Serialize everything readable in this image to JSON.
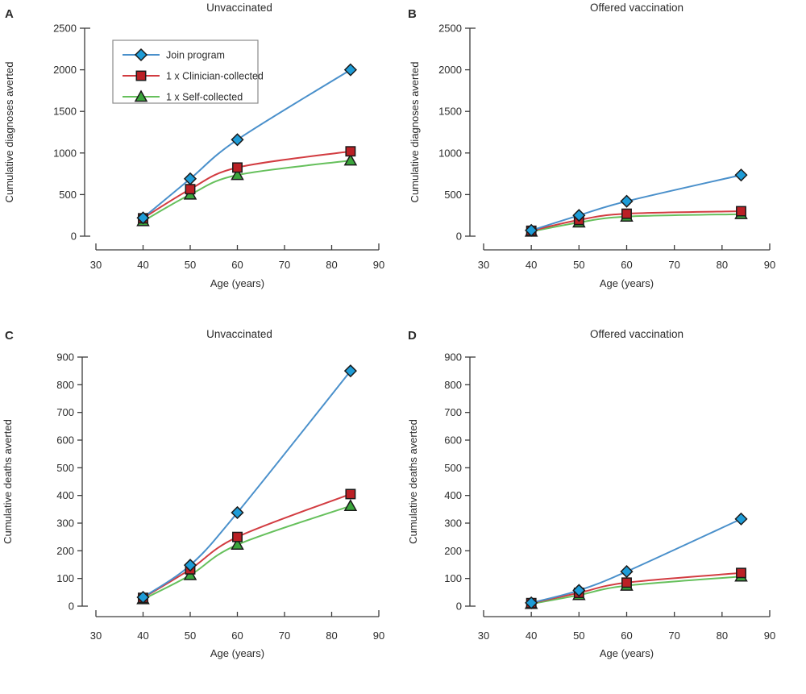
{
  "figure": {
    "background": "#ffffff",
    "text_color": "#2b2b2b",
    "axis_color": "#3c3c3c",
    "legend_border_color": "#8a8a8a"
  },
  "chart_data": [
    {
      "panel_label": "A",
      "type": "line",
      "title": "Unvaccinated",
      "xlabel": "Age (years)",
      "ylabel": "Cumulative diagnoses averted",
      "x": [
        40,
        50,
        60,
        84
      ],
      "xticks": [
        30,
        40,
        50,
        60,
        70,
        80,
        90
      ],
      "xlim": [
        30,
        90
      ],
      "yticks": [
        0,
        500,
        1000,
        1500,
        2000,
        2500
      ],
      "ylim": [
        0,
        2500
      ],
      "grid": false,
      "show_legend": true,
      "legend_position": "top-left-inside",
      "series": [
        {
          "name": "Join program",
          "marker": "diamond",
          "line_color": "#4a90cb",
          "marker_color": "#1e9cd7",
          "values": [
            220,
            690,
            1160,
            2000
          ]
        },
        {
          "name": "1 x Clinician-collected",
          "marker": "square",
          "line_color": "#d23c41",
          "marker_color": "#bb2025",
          "values": [
            215,
            565,
            825,
            1020
          ]
        },
        {
          "name": "1 x Self-collected",
          "marker": "triangle",
          "line_color": "#66c05c",
          "marker_color": "#3ba63c",
          "values": [
            180,
            500,
            735,
            910
          ]
        }
      ]
    },
    {
      "panel_label": "B",
      "type": "line",
      "title": "Offered vaccination",
      "xlabel": "Age (years)",
      "ylabel": "Cumulative diagnoses averted",
      "x": [
        40,
        50,
        60,
        84
      ],
      "xticks": [
        30,
        40,
        50,
        60,
        70,
        80,
        90
      ],
      "xlim": [
        30,
        90
      ],
      "yticks": [
        0,
        500,
        1000,
        1500,
        2000,
        2500
      ],
      "ylim": [
        0,
        2500
      ],
      "grid": false,
      "show_legend": false,
      "series": [
        {
          "name": "Join program",
          "marker": "diamond",
          "line_color": "#4a90cb",
          "marker_color": "#1e9cd7",
          "values": [
            70,
            250,
            420,
            735
          ]
        },
        {
          "name": "1 x Clinician-collected",
          "marker": "square",
          "line_color": "#d23c41",
          "marker_color": "#bb2025",
          "values": [
            65,
            195,
            270,
            300
          ]
        },
        {
          "name": "1 x Self-collected",
          "marker": "triangle",
          "line_color": "#66c05c",
          "marker_color": "#3ba63c",
          "values": [
            55,
            165,
            235,
            265
          ]
        }
      ]
    },
    {
      "panel_label": "C",
      "type": "line",
      "title": "Unvaccinated",
      "xlabel": "Age (years)",
      "ylabel": "Cumulative deaths averted",
      "x": [
        40,
        50,
        60,
        84
      ],
      "xticks": [
        30,
        40,
        50,
        60,
        70,
        80,
        90
      ],
      "xlim": [
        30,
        90
      ],
      "yticks": [
        0,
        100,
        200,
        300,
        400,
        500,
        600,
        700,
        800,
        900
      ],
      "ylim": [
        0,
        900
      ],
      "grid": false,
      "show_legend": false,
      "series": [
        {
          "name": "Join program",
          "marker": "diamond",
          "line_color": "#4a90cb",
          "marker_color": "#1e9cd7",
          "values": [
            32,
            148,
            338,
            850
          ]
        },
        {
          "name": "1 x Clinician-collected",
          "marker": "square",
          "line_color": "#d23c41",
          "marker_color": "#bb2025",
          "values": [
            30,
            133,
            250,
            405
          ]
        },
        {
          "name": "1 x Self-collected",
          "marker": "triangle",
          "line_color": "#66c05c",
          "marker_color": "#3ba63c",
          "values": [
            25,
            112,
            222,
            362
          ]
        }
      ]
    },
    {
      "panel_label": "D",
      "type": "line",
      "title": "Offered vaccination",
      "xlabel": "Age (years)",
      "ylabel": "Cumulative deaths averted",
      "x": [
        40,
        50,
        60,
        84
      ],
      "xticks": [
        30,
        40,
        50,
        60,
        70,
        80,
        90
      ],
      "xlim": [
        30,
        90
      ],
      "yticks": [
        0,
        100,
        200,
        300,
        400,
        500,
        600,
        700,
        800,
        900
      ],
      "ylim": [
        0,
        900
      ],
      "grid": false,
      "show_legend": false,
      "series": [
        {
          "name": "Join program",
          "marker": "diamond",
          "line_color": "#4a90cb",
          "marker_color": "#1e9cd7",
          "values": [
            12,
            57,
            125,
            315
          ]
        },
        {
          "name": "1 x Clinician-collected",
          "marker": "square",
          "line_color": "#d23c41",
          "marker_color": "#bb2025",
          "values": [
            11,
            48,
            85,
            120
          ]
        },
        {
          "name": "1 x Self-collected",
          "marker": "triangle",
          "line_color": "#66c05c",
          "marker_color": "#3ba63c",
          "values": [
            8,
            40,
            74,
            107
          ]
        }
      ]
    }
  ]
}
